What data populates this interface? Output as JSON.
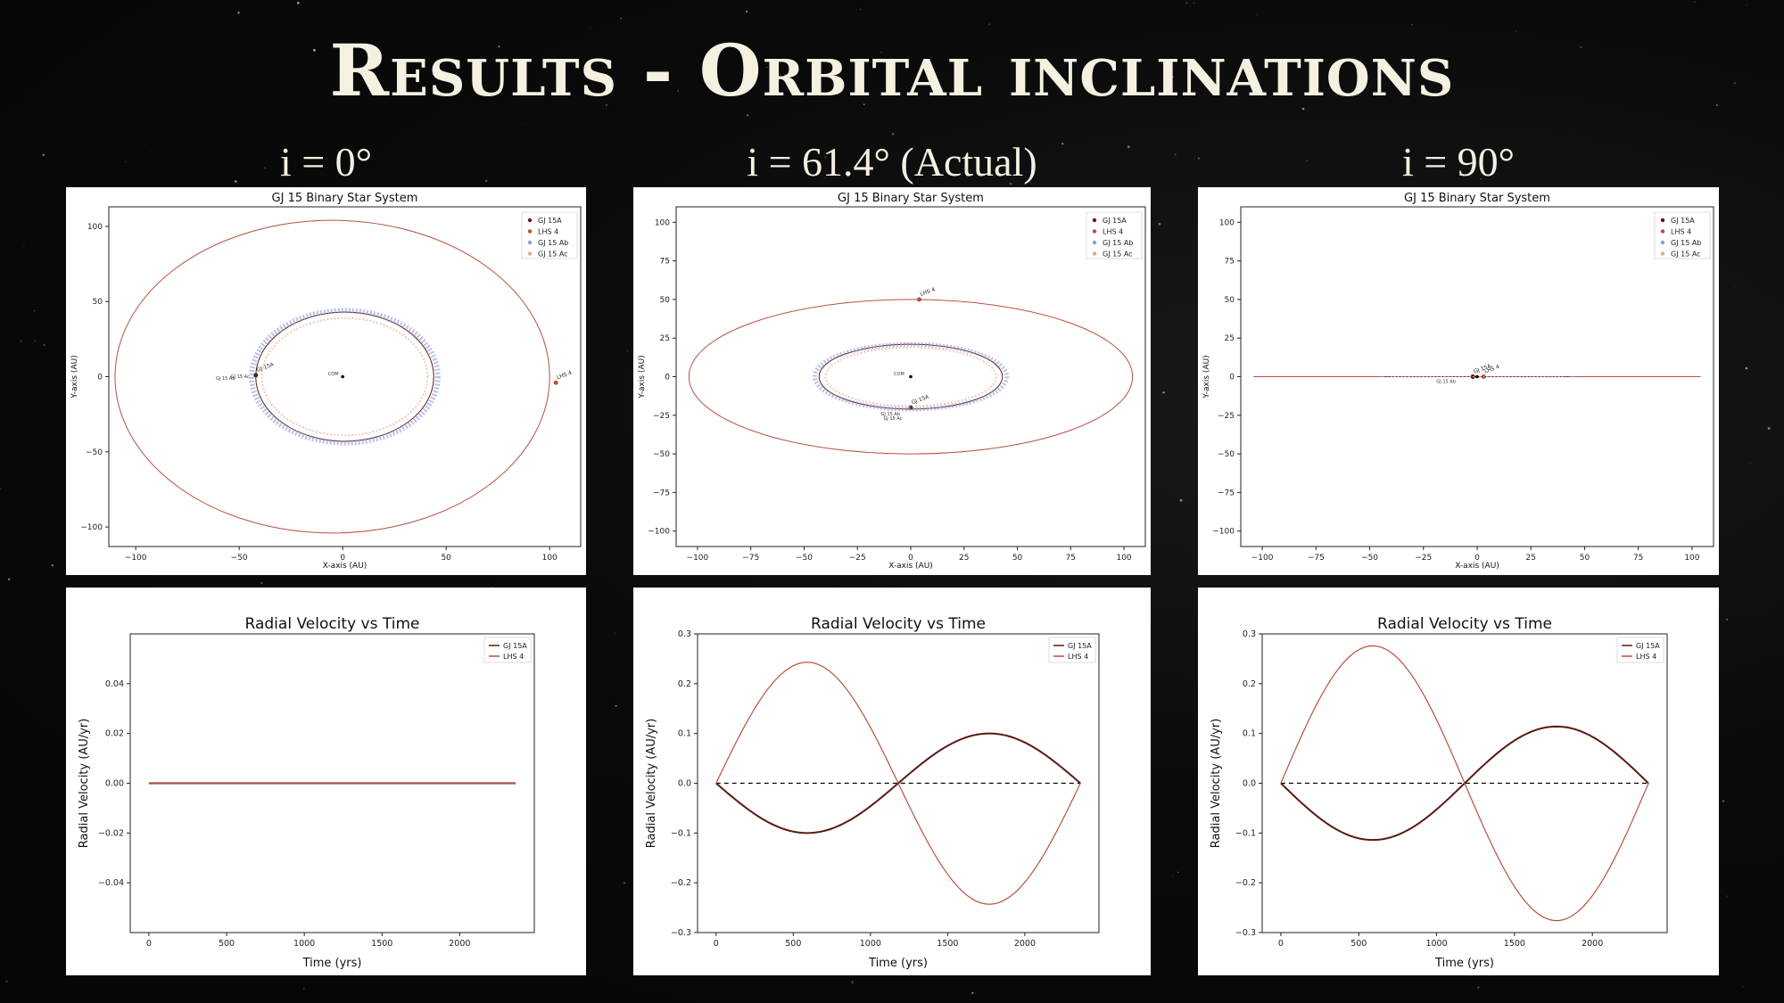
{
  "slide": {
    "title": "Results - Orbital inclinations",
    "columns": [
      "i = 0°",
      "i = 61.4° (Actual)",
      "i = 90°"
    ]
  },
  "colors": {
    "gj15a": "#5a1a12",
    "lhs4": "#b8503e",
    "ab": "#8f9bd6",
    "ac": "#e2a98a"
  },
  "chart_data": [
    {
      "type": "line",
      "title": "GJ 15 Binary Star System",
      "xlabel": "X-axis (AU)",
      "ylabel": "Y-axis (AU)",
      "xlim": [
        -113,
        115
      ],
      "ylim": [
        -113,
        113
      ],
      "xticks": [
        -100,
        -50,
        0,
        50,
        100
      ],
      "yticks": [
        100,
        50,
        0,
        -50,
        -100
      ],
      "legend": [
        "GJ 15A",
        "LHS 4",
        "GJ 15 Ab",
        "GJ 15 Ac"
      ],
      "series": [
        {
          "name": "LHS 4",
          "orbit": {
            "cx": -5,
            "cy": 0,
            "rx": 105,
            "ry": 104
          },
          "marker": [
            103,
            -4
          ],
          "label": "LHS 4"
        },
        {
          "name": "GJ 15A",
          "orbit": {
            "cx": 1,
            "cy": 0,
            "rx": 43,
            "ry": 43
          },
          "marker": [
            -42,
            1
          ],
          "label": "GJ 15A"
        },
        {
          "name": "GJ 15 Ab",
          "ring": {
            "cx": 1,
            "cy": 0,
            "rx": 45,
            "ry": 44,
            "w": 6
          }
        },
        {
          "name": "GJ 15 Ac",
          "ring": {
            "cx": 1,
            "cy": 0,
            "rx": 40,
            "ry": 39,
            "w": 2
          }
        }
      ],
      "annotations": [
        {
          "text": "COM",
          "x": -2,
          "y": 1
        },
        {
          "text": "GJ 15 Ab",
          "x": -52,
          "y": -2
        },
        {
          "text": "GJ 15 Ac",
          "x": -45,
          "y": -1
        }
      ]
    },
    {
      "type": "line",
      "title": "GJ 15 Binary Star System",
      "xlabel": "X-axis (AU)",
      "ylabel": "Y-axis (AU)",
      "xlim": [
        -110,
        110
      ],
      "ylim": [
        -110,
        110
      ],
      "xticks": [
        -100,
        -75,
        -50,
        -25,
        0,
        25,
        50,
        75,
        100
      ],
      "yticks": [
        100,
        75,
        50,
        25,
        0,
        -25,
        -50,
        -75,
        -100
      ],
      "legend": [
        "GJ 15A",
        "LHS 4",
        "GJ 15 Ab",
        "GJ 15 Ac"
      ],
      "series": [
        {
          "name": "LHS 4",
          "orbit": {
            "cx": 0,
            "cy": 0,
            "rx": 104,
            "ry": 50
          },
          "marker": [
            4,
            50
          ],
          "label": "LHS 4"
        },
        {
          "name": "GJ 15A",
          "orbit": {
            "cx": 0,
            "cy": 0,
            "rx": 43,
            "ry": 21
          },
          "marker": [
            0,
            -20
          ],
          "label": "GJ 15A"
        },
        {
          "name": "GJ 15 Ab",
          "ring": {
            "cx": 0,
            "cy": 0,
            "rx": 45,
            "ry": 21,
            "w": 5
          }
        },
        {
          "name": "GJ 15 Ac",
          "ring": {
            "cx": 0,
            "cy": 0,
            "rx": 40,
            "ry": 19,
            "w": 2
          }
        }
      ],
      "annotations": [
        {
          "text": "COM",
          "x": -3,
          "y": 1
        },
        {
          "text": "GJ 15 Ab",
          "x": -5,
          "y": -25
        },
        {
          "text": "GJ 15 Ac",
          "x": -4,
          "y": -28
        }
      ]
    },
    {
      "type": "line",
      "title": "GJ 15 Binary Star System",
      "xlabel": "X-axis (AU)",
      "ylabel": "Y-axis (AU)",
      "xlim": [
        -110,
        110
      ],
      "ylim": [
        -110,
        110
      ],
      "xticks": [
        -100,
        -75,
        -50,
        -25,
        0,
        25,
        50,
        75,
        100
      ],
      "yticks": [
        100,
        75,
        50,
        25,
        0,
        -25,
        -50,
        -75,
        -100
      ],
      "legend": [
        "GJ 15A",
        "LHS 4",
        "GJ 15 Ab",
        "GJ 15 Ac"
      ],
      "series": [
        {
          "name": "LHS 4",
          "orbit": {
            "cx": 0,
            "cy": 0,
            "rx": 104,
            "ry": 0
          },
          "marker": [
            3,
            0
          ],
          "label": "LHS 4"
        },
        {
          "name": "GJ 15A",
          "orbit": {
            "cx": 0,
            "cy": 0,
            "rx": 43,
            "ry": 0
          },
          "marker": [
            -2,
            0
          ],
          "label": "GJ 15A"
        },
        {
          "name": "GJ 15 Ab",
          "ring": {
            "cx": 0,
            "cy": 0,
            "rx": 45,
            "ry": 0,
            "w": 1
          }
        },
        {
          "name": "GJ 15 Ac",
          "ring": {
            "cx": 0,
            "cy": 0,
            "rx": 40,
            "ry": 0,
            "w": 1
          }
        }
      ],
      "annotations": [
        {
          "text": "GJ 15 Ab",
          "x": -10,
          "y": -4
        }
      ]
    },
    {
      "type": "line",
      "title": "Radial Velocity vs Time",
      "xlabel": "Time (yrs)",
      "ylabel": "Radial Velocity (AU/yr)",
      "xlim": [
        -120,
        2480
      ],
      "ylim": [
        -0.06,
        0.06
      ],
      "xticks": [
        0,
        500,
        1000,
        1500,
        2000
      ],
      "yticks": [
        0.04,
        0.02,
        0.0,
        -0.02,
        -0.04
      ],
      "ytick_labels": [
        "0.04",
        "0.02",
        "0.00",
        "−0.02",
        "−0.04"
      ],
      "legend": [
        "GJ 15A",
        "LHS 4"
      ],
      "period": 2360,
      "series": [
        {
          "name": "GJ 15A",
          "amplitude": 0
        },
        {
          "name": "LHS 4",
          "amplitude": 0
        }
      ],
      "zero_line": false
    },
    {
      "type": "line",
      "title": "Radial Velocity vs Time",
      "xlabel": "Time (yrs)",
      "ylabel": "Radial Velocity (AU/yr)",
      "xlim": [
        -120,
        2480
      ],
      "ylim": [
        -0.3,
        0.3
      ],
      "xticks": [
        0,
        500,
        1000,
        1500,
        2000
      ],
      "yticks": [
        0.3,
        0.2,
        0.1,
        0.0,
        -0.1,
        -0.2,
        -0.3
      ],
      "ytick_labels": [
        "0.3",
        "0.2",
        "0.1",
        "0.0",
        "−0.1",
        "−0.2",
        "−0.3"
      ],
      "legend": [
        "GJ 15A",
        "LHS 4"
      ],
      "period": 2360,
      "series": [
        {
          "name": "GJ 15A",
          "amplitude": -0.1
        },
        {
          "name": "LHS 4",
          "amplitude": 0.243
        }
      ],
      "zero_line": true
    },
    {
      "type": "line",
      "title": "Radial Velocity vs Time",
      "xlabel": "Time (yrs)",
      "ylabel": "Radial Velocity (AU/yr)",
      "xlim": [
        -120,
        2480
      ],
      "ylim": [
        -0.3,
        0.3
      ],
      "xticks": [
        0,
        500,
        1000,
        1500,
        2000
      ],
      "yticks": [
        0.3,
        0.2,
        0.1,
        0.0,
        -0.1,
        -0.2,
        -0.3
      ],
      "ytick_labels": [
        "0.3",
        "0.2",
        "0.1",
        "0.0",
        "−0.1",
        "−0.2",
        "−0.3"
      ],
      "legend": [
        "GJ 15A",
        "LHS 4"
      ],
      "period": 2360,
      "series": [
        {
          "name": "GJ 15A",
          "amplitude": -0.114
        },
        {
          "name": "LHS 4",
          "amplitude": 0.276
        }
      ],
      "zero_line": true
    }
  ]
}
